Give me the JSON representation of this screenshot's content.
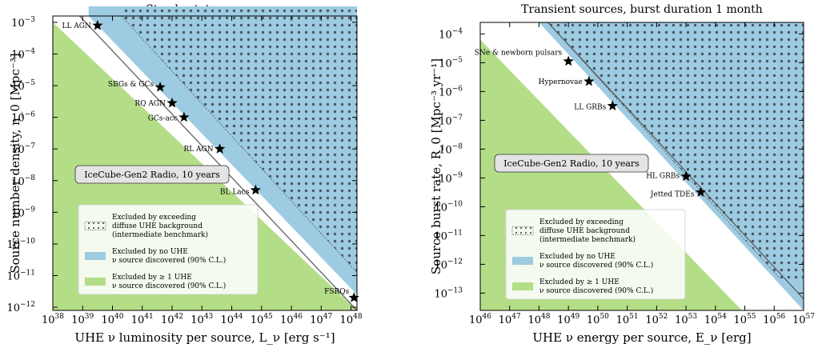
{
  "colors": {
    "green": "#b4dd88",
    "blue": "#9dcbe2",
    "dot": "#4a5a64",
    "line": "#555555",
    "star": "#000000",
    "box_fill": "#e4e4e4"
  },
  "chart_data": [
    {
      "type": "area",
      "title": "Steady-state sources",
      "xlabel": "UHE ν luminosity per source, L_ν [erg s⁻¹]",
      "ylabel": "Source number density, n_0 [Mpc⁻³]",
      "x_scale": "log",
      "y_scale": "log",
      "xlim_exp": [
        38,
        48.2
      ],
      "ylim_exp": [
        -12.1,
        -2.8
      ],
      "x_tick_exps": [
        38,
        39,
        40,
        41,
        42,
        43,
        44,
        45,
        46,
        47,
        48
      ],
      "y_tick_exps": [
        -12,
        -11,
        -10,
        -9,
        -8,
        -7,
        -6,
        -5,
        -4,
        -3
      ],
      "x_tick_base": "10",
      "y_tick_base": "10",
      "annotation": "IceCube-Gen2 Radio, 10 years",
      "regions": {
        "green_boundary": [
          [
            38,
            -3.0
          ],
          [
            48.2,
            -12.1
          ]
        ],
        "blue_boundary": [
          [
            39.2,
            -2.8
          ],
          [
            48.2,
            -11.6
          ]
        ],
        "dotted_boundary": [
          [
            40.3,
            -2.8
          ],
          [
            48.2,
            -10.9
          ]
        ],
        "reference_line": [
          [
            38.9,
            -2.8
          ],
          [
            48.2,
            -12.1
          ]
        ]
      },
      "sources": [
        {
          "name": "LL AGN",
          "x_exp": 39.5,
          "y_exp": -3.1
        },
        {
          "name": "SBGs & GCs",
          "x_exp": 41.6,
          "y_exp": -5.05
        },
        {
          "name": "RQ AGN",
          "x_exp": 42.0,
          "y_exp": -5.55
        },
        {
          "name": "GCs-acc",
          "x_exp": 42.4,
          "y_exp": -6.0
        },
        {
          "name": "RL AGN",
          "x_exp": 43.6,
          "y_exp": -7.0
        },
        {
          "name": "BL Lacs",
          "x_exp": 44.8,
          "y_exp": -8.3
        },
        {
          "name": "FSRQs",
          "x_exp": 48.1,
          "y_exp": -11.7
        }
      ],
      "legend": {
        "position": "lower-left",
        "entries": [
          {
            "kind": "dotted",
            "lines": [
              "Excluded by exceeding",
              "diffuse UHE background",
              "(intermediate benchmark)"
            ]
          },
          {
            "kind": "blue",
            "lines": [
              "Excluded by no UHE",
              "ν source discovered (90% C.L.)"
            ]
          },
          {
            "kind": "green",
            "lines": [
              "Excluded by ≥ 1 UHE",
              "ν source discovered (90% C.L.)"
            ]
          }
        ]
      }
    },
    {
      "type": "area",
      "title": "Transient sources, burst duration 1 month",
      "xlabel": "UHE ν energy per source, E_ν [erg]",
      "ylabel": "Source burst rate, R_0 [Mpc⁻³ yr⁻¹]",
      "x_scale": "log",
      "y_scale": "log",
      "xlim_exp": [
        46,
        57
      ],
      "ylim_exp": [
        -13.6,
        -3.6
      ],
      "x_tick_exps": [
        46,
        47,
        48,
        49,
        50,
        51,
        52,
        53,
        54,
        55,
        56,
        57
      ],
      "y_tick_exps": [
        -13,
        -12,
        -11,
        -10,
        -9,
        -8,
        -7,
        -6,
        -5,
        -4
      ],
      "x_tick_base": "10",
      "y_tick_base": "10",
      "annotation": "IceCube-Gen2 Radio, 10 years",
      "regions": {
        "green_boundary": [
          [
            46,
            -4.2
          ],
          [
            54.9,
            -13.6
          ]
        ],
        "blue_boundary": [
          [
            48.0,
            -3.6
          ],
          [
            57,
            -13.6
          ]
        ],
        "dotted_boundary": [
          [
            48.3,
            -3.6
          ],
          [
            56.2,
            -12.5
          ]
        ],
        "reference_line": [
          [
            48.3,
            -3.6
          ],
          [
            57,
            -13.2
          ]
        ]
      },
      "sources": [
        {
          "name": "SNe & newborn pulsars",
          "x_exp": 49.0,
          "y_exp": -4.95
        },
        {
          "name": "Hypernovae",
          "x_exp": 49.7,
          "y_exp": -5.65
        },
        {
          "name": "LL GRBs",
          "x_exp": 50.5,
          "y_exp": -6.5
        },
        {
          "name": "HL GRBs",
          "x_exp": 53.0,
          "y_exp": -8.95
        },
        {
          "name": "Jetted TDEs",
          "x_exp": 53.5,
          "y_exp": -9.5
        }
      ],
      "legend": {
        "position": "lower-left",
        "entries": [
          {
            "kind": "dotted",
            "lines": [
              "Excluded by exceeding",
              "diffuse UHE background",
              "(intermediate benchmark)"
            ]
          },
          {
            "kind": "blue",
            "lines": [
              "Excluded by no UHE",
              "ν source discovered (90% C.L.)"
            ]
          },
          {
            "kind": "green",
            "lines": [
              "Excluded by ≥ 1 UHE",
              "ν source discovered (90% C.L.)"
            ]
          }
        ]
      }
    }
  ]
}
